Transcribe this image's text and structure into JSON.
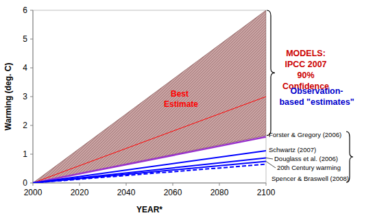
{
  "chart_data": {
    "type": "line",
    "x_label": "YEAR*",
    "y_label": "Warming (deg. C)",
    "x": [
      2000,
      2100
    ],
    "xlim": [
      2000,
      2100
    ],
    "xticks": [
      2000,
      2020,
      2040,
      2060,
      2080,
      2100
    ],
    "ylim": [
      0,
      6
    ],
    "yticks": [
      0,
      1,
      2,
      3,
      4,
      5,
      6
    ],
    "grid": false,
    "series": [
      {
        "type": "area",
        "color": "#c9a3a3",
        "values": [
          0,
          6
        ],
        "lower": [
          0,
          1.65
        ]
      },
      {
        "name": "Best Estimate",
        "color": "#ff0000",
        "values": [
          0,
          3.0
        ],
        "line_style": "solid"
      },
      {
        "name": "Forster & Gregory (2006)",
        "color": "#9933cc",
        "values": [
          0,
          1.6
        ],
        "line_style": "solid"
      },
      {
        "name": "Schwartz (2007)",
        "color": "#0000ff",
        "values": [
          0,
          1.12
        ],
        "line_style": "solid"
      },
      {
        "name": "Douglass et al. (2006)",
        "color": "#0000ff",
        "values": [
          0,
          0.87
        ],
        "line_style": "solid"
      },
      {
        "name": "20th Century warming",
        "color": "#0000ff",
        "values": [
          0,
          0.75
        ],
        "line_style": "solid"
      },
      {
        "name": "Spencer & Braswell (2008)",
        "color": "#0000ff",
        "values": [
          0,
          0.65
        ],
        "line_style": "dashed"
      }
    ],
    "annotations": [
      {
        "lines": [
          "MODELS:",
          "IPCC 2007",
          "90%",
          "Confidence"
        ],
        "color": "#cc0000"
      },
      {
        "lines": [
          "Observation-",
          "based \"estimates\""
        ],
        "color": "#0000cc"
      }
    ]
  }
}
